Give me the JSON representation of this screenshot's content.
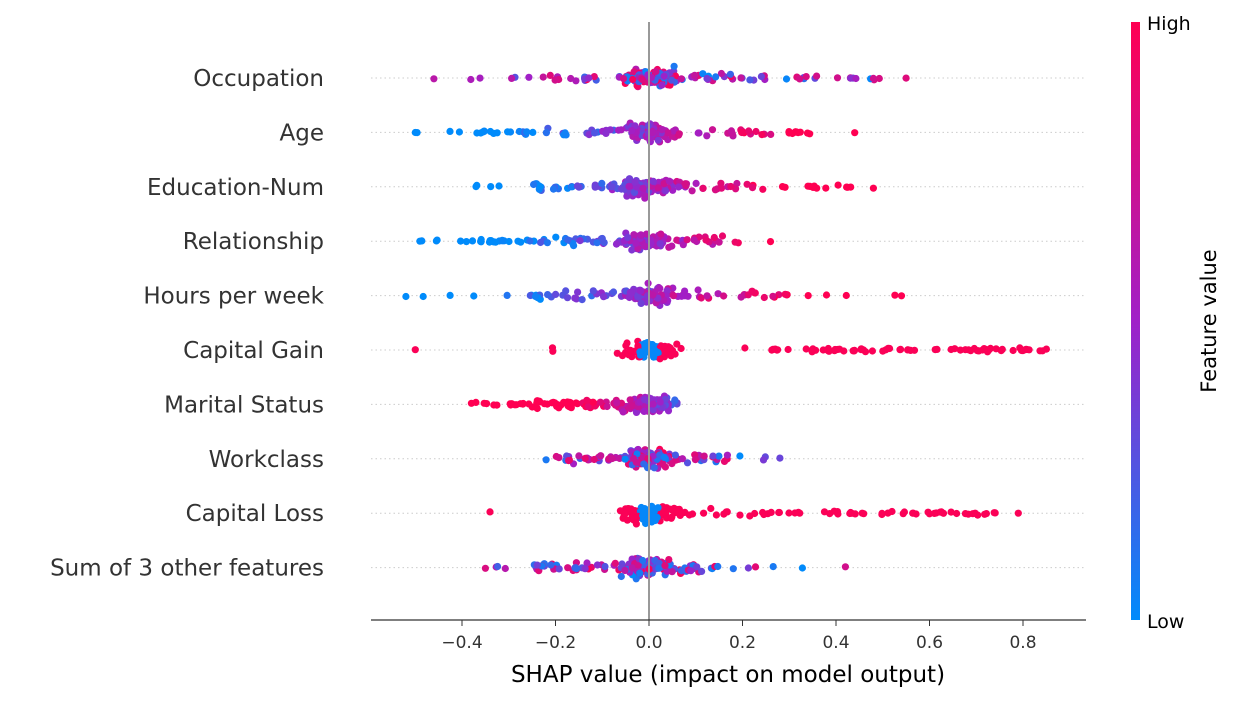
{
  "chart_data": {
    "type": "scatter",
    "subtype": "shap-beeswarm",
    "title": "",
    "xlabel": "SHAP value (impact on model output)",
    "ylabel": "",
    "xlim": [
      -0.59,
      0.92
    ],
    "xticks": [
      -0.4,
      -0.2,
      0.0,
      0.2,
      0.4,
      0.6,
      0.8
    ],
    "xtick_labels": [
      "−0.4",
      "−0.2",
      "0.0",
      "0.2",
      "0.4",
      "0.6",
      "0.8"
    ],
    "grid": false,
    "zero_line": true,
    "colorbar": {
      "label": "Feature value",
      "high_label": "High",
      "low_label": "Low",
      "low_color": "#008bfb",
      "mid_color": "#a020c8",
      "high_color": "#ff0052",
      "placement": "right"
    },
    "features": [
      {
        "name": "Occupation",
        "spread": [
          -0.46,
          0.55
        ],
        "low_side": "mixed",
        "core": [
          -0.3,
          0.5
        ]
      },
      {
        "name": "Age",
        "spread": [
          -0.5,
          0.44
        ],
        "low_side": "negative",
        "core": [
          -0.38,
          0.35
        ]
      },
      {
        "name": "Education-Num",
        "spread": [
          -0.37,
          0.48
        ],
        "low_side": "negative",
        "core": [
          -0.25,
          0.45
        ]
      },
      {
        "name": "Relationship",
        "spread": [
          -0.49,
          0.26
        ],
        "low_side": "negative",
        "core": [
          -0.38,
          0.17
        ]
      },
      {
        "name": "Hours per week",
        "spread": [
          -0.52,
          0.54
        ],
        "low_side": "negative",
        "core": [
          -0.25,
          0.3
        ]
      },
      {
        "name": "Capital Gain",
        "spread": [
          -0.5,
          0.85
        ],
        "low_side": "zero",
        "core": [
          0.26,
          0.85
        ]
      },
      {
        "name": "Marital Status",
        "spread": [
          -0.38,
          0.06
        ],
        "low_side": "positive",
        "core": [
          -0.3,
          0.05
        ]
      },
      {
        "name": "Workclass",
        "spread": [
          -0.22,
          0.28
        ],
        "low_side": "mixed",
        "core": [
          -0.18,
          0.17
        ]
      },
      {
        "name": "Capital Loss",
        "spread": [
          -0.34,
          0.79
        ],
        "low_side": "zero",
        "core": [
          0.05,
          0.75
        ]
      },
      {
        "name": "Sum of 3 other features",
        "spread": [
          -0.35,
          0.42
        ],
        "low_side": "mixed",
        "core": [
          -0.25,
          0.15
        ]
      }
    ]
  }
}
